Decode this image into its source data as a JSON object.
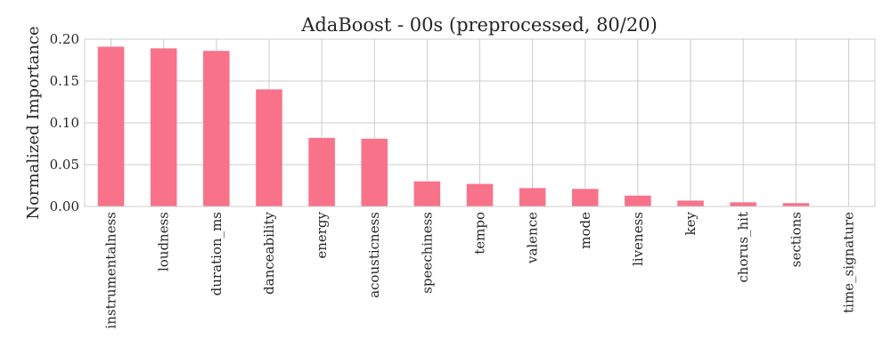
{
  "chart_data": {
    "type": "bar",
    "title": "AdaBoost - 00s (preprocessed, 80/20)",
    "xlabel": "",
    "ylabel": "Normalized Importance",
    "categories": [
      "instrumentalness",
      "loudness",
      "duration_ms",
      "danceability",
      "energy",
      "acousticness",
      "speechiness",
      "tempo",
      "valence",
      "mode",
      "liveness",
      "key",
      "chorus_hit",
      "sections",
      "time_signature"
    ],
    "values": [
      0.191,
      0.189,
      0.186,
      0.14,
      0.082,
      0.081,
      0.03,
      0.027,
      0.022,
      0.021,
      0.013,
      0.007,
      0.005,
      0.004,
      0.0
    ],
    "yticks": [
      "0.00",
      "0.05",
      "0.10",
      "0.15",
      "0.20"
    ],
    "ylim": [
      0,
      0.2
    ],
    "grid": true,
    "bar_color": "#f8738a",
    "grid_color": "#cccccc"
  }
}
